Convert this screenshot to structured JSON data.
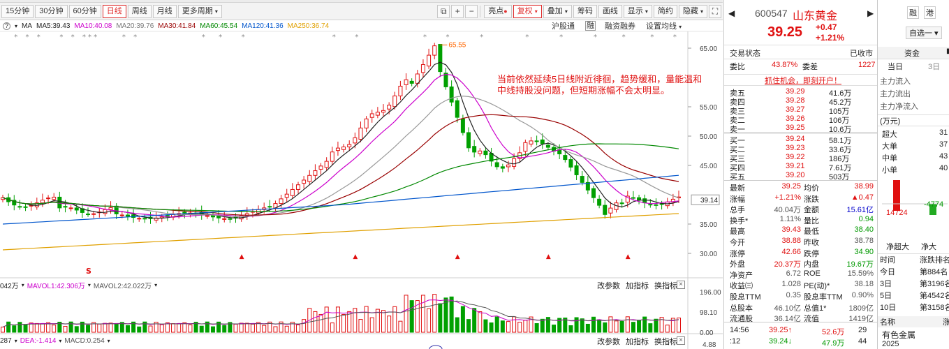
{
  "toolbar": {
    "periods": [
      "15分钟",
      "30分钟",
      "60分钟",
      "日线",
      "周线",
      "月线",
      "更多周期"
    ],
    "active_period": "日线",
    "right_buttons": [
      "亮点",
      "复权",
      "叠加",
      "筹码",
      "画线",
      "显示",
      "简约",
      "隐藏"
    ]
  },
  "ma_line": {
    "prefix": "MA",
    "items": [
      {
        "label": "MA5:39.43",
        "color": "#222222"
      },
      {
        "label": "MA10:40.08",
        "color": "#cc00cc"
      },
      {
        "label": "MA20:39.76",
        "color": "#777777"
      },
      {
        "label": "MA30:41.84",
        "color": "#990000"
      },
      {
        "label": "MA60:45.54",
        "color": "#008800"
      },
      {
        "label": "MA120:41.36",
        "color": "#0055cc"
      },
      {
        "label": "MA250:36.74",
        "color": "#e0a000"
      }
    ],
    "controls": [
      "沪股通",
      "融",
      "融资融券",
      "设置均线"
    ]
  },
  "annotation": {
    "line1": "当前依然延续5日线附近徘徊，趋势缓和，量能温和",
    "line2": "中线持股没问题，但短期涨幅不会太明显。"
  },
  "price_axis": {
    "ticks": [
      "65.00",
      "55.00",
      "50.00",
      "45.00",
      "35.00",
      "30.00"
    ],
    "current": "39.14",
    "peak_label": "65.55"
  },
  "volume": {
    "header": [
      {
        "label": "042万",
        "color": "#222222"
      },
      {
        "label": "MAVOL1:42.306万",
        "color": "#cc00cc"
      },
      {
        "label": "MAVOL2:42.022万",
        "color": "#555555"
      }
    ],
    "ticks": [
      "196.00",
      "98.10",
      "0.00"
    ]
  },
  "macd": {
    "header": [
      {
        "label": "287",
        "color": "#222222"
      },
      {
        "label": "DEA:-1.414",
        "color": "#cc00cc"
      },
      {
        "label": "MACD:0.254",
        "color": "#555555"
      }
    ],
    "tick": "4.88"
  },
  "panel_links": [
    "改参数",
    "加指标",
    "换指标"
  ],
  "quote": {
    "code": "600547",
    "name": "山东黄金",
    "tags": [
      "融",
      "港"
    ],
    "price": "39.25",
    "change": "+0.47",
    "change_pct": "+1.21%",
    "add_fav": "自选一",
    "status_label": "交易状态",
    "status_value": "已收市",
    "wb_label": "委比",
    "wb_value": "43.87%",
    "wc_label": "委差",
    "wc_value": "1227",
    "promo": "抓住机会，即刻开户！",
    "asks": [
      {
        "label": "卖五",
        "price": "39.29",
        "vol": "41.6万"
      },
      {
        "label": "卖四",
        "price": "39.28",
        "vol": "45.2万"
      },
      {
        "label": "卖三",
        "price": "39.27",
        "vol": "105万"
      },
      {
        "label": "卖二",
        "price": "39.26",
        "vol": "106万"
      },
      {
        "label": "卖一",
        "price": "39.25",
        "vol": "10.6万"
      }
    ],
    "bids": [
      {
        "label": "买一",
        "price": "39.24",
        "vol": "58.1万"
      },
      {
        "label": "买二",
        "price": "39.23",
        "vol": "33.6万"
      },
      {
        "label": "买三",
        "price": "39.22",
        "vol": "186万"
      },
      {
        "label": "买四",
        "price": "39.21",
        "vol": "7.61万"
      },
      {
        "label": "买五",
        "price": "39.20",
        "vol": "503万"
      }
    ],
    "stats": [
      {
        "l1": "最新",
        "v1": "39.25",
        "c1": "red",
        "l2": "均价",
        "v2": "38.99",
        "c2": "red"
      },
      {
        "l1": "涨幅",
        "v1": "+1.21%",
        "c1": "red",
        "l2": "涨跌",
        "v2": "▲0.47",
        "c2": "red"
      },
      {
        "l1": "总手",
        "v1": "40.04万",
        "c1": "grey",
        "l2": "金额",
        "v2": "15.61亿",
        "c2": "blue"
      },
      {
        "l1": "换手*",
        "v1": "1.11%",
        "c1": "grey",
        "l2": "量比",
        "v2": "0.94",
        "c2": "green"
      },
      {
        "l1": "最高",
        "v1": "39.43",
        "c1": "red",
        "l2": "最低",
        "v2": "38.40",
        "c2": "green"
      },
      {
        "l1": "今开",
        "v1": "38.88",
        "c1": "red",
        "l2": "昨收",
        "v2": "38.78",
        "c2": "grey"
      },
      {
        "l1": "涨停",
        "v1": "42.66",
        "c1": "red",
        "l2": "跌停",
        "v2": "34.90",
        "c2": "green"
      },
      {
        "l1": "外盘",
        "v1": "20.37万",
        "c1": "red",
        "l2": "内盘",
        "v2": "19.67万",
        "c2": "green"
      },
      {
        "l1": "净资产",
        "v1": "6.72",
        "c1": "grey",
        "l2": "ROE",
        "v2": "15.59%",
        "c2": "grey"
      },
      {
        "l1": "收益㈢",
        "v1": "1.028",
        "c1": "grey",
        "l2": "PE(动)*",
        "v2": "38.18",
        "c2": "grey"
      },
      {
        "l1": "股息TTM",
        "v1": "0.35",
        "c1": "grey",
        "l2": "股息率TTM",
        "v2": "0.90%",
        "c2": "grey"
      },
      {
        "l1": "总股本",
        "v1": "46.10亿",
        "c1": "grey",
        "l2": "总值1*",
        "v2": "1809亿",
        "c2": "grey"
      },
      {
        "l1": "流通股",
        "v1": "36.14亿",
        "c1": "grey",
        "l2": "流值",
        "v2": "1419亿",
        "c2": "grey"
      }
    ],
    "ticks": [
      {
        "time": "14:56",
        "price": "39.25↑",
        "vol": "52.6万",
        "num": "29",
        "pc": "red",
        "vc": "red"
      },
      {
        "time": ":12",
        "price": "39.24↓",
        "vol": "47.9万",
        "num": "44",
        "pc": "green",
        "vc": "green"
      }
    ]
  },
  "far_panel": {
    "tab": "资金",
    "subtabs": [
      "当日",
      "3日"
    ],
    "flow": [
      "主力流入",
      "主力流出",
      "主力净流入"
    ],
    "unit": "(万元)",
    "sizes": [
      {
        "label": "超大",
        "value": "31"
      },
      {
        "label": "大单",
        "value": "37"
      },
      {
        "label": "中单",
        "value": "43"
      },
      {
        "label": "小单",
        "value": "40"
      }
    ],
    "bar_pos": "14724",
    "bar_neg": "-4774",
    "bar_labels": [
      "净超大",
      "净大"
    ],
    "rank_header": [
      "时间",
      "涨跌排名"
    ],
    "ranks": [
      {
        "period": "今日",
        "rank": "第884名"
      },
      {
        "period": "3日",
        "rank": "第3196名"
      },
      {
        "period": "5日",
        "rank": "第4542名"
      },
      {
        "period": "10日",
        "rank": "第3158名"
      }
    ],
    "sector_header": [
      "名称",
      "涨"
    ],
    "sector": "有色金属",
    "year": "2025"
  }
}
